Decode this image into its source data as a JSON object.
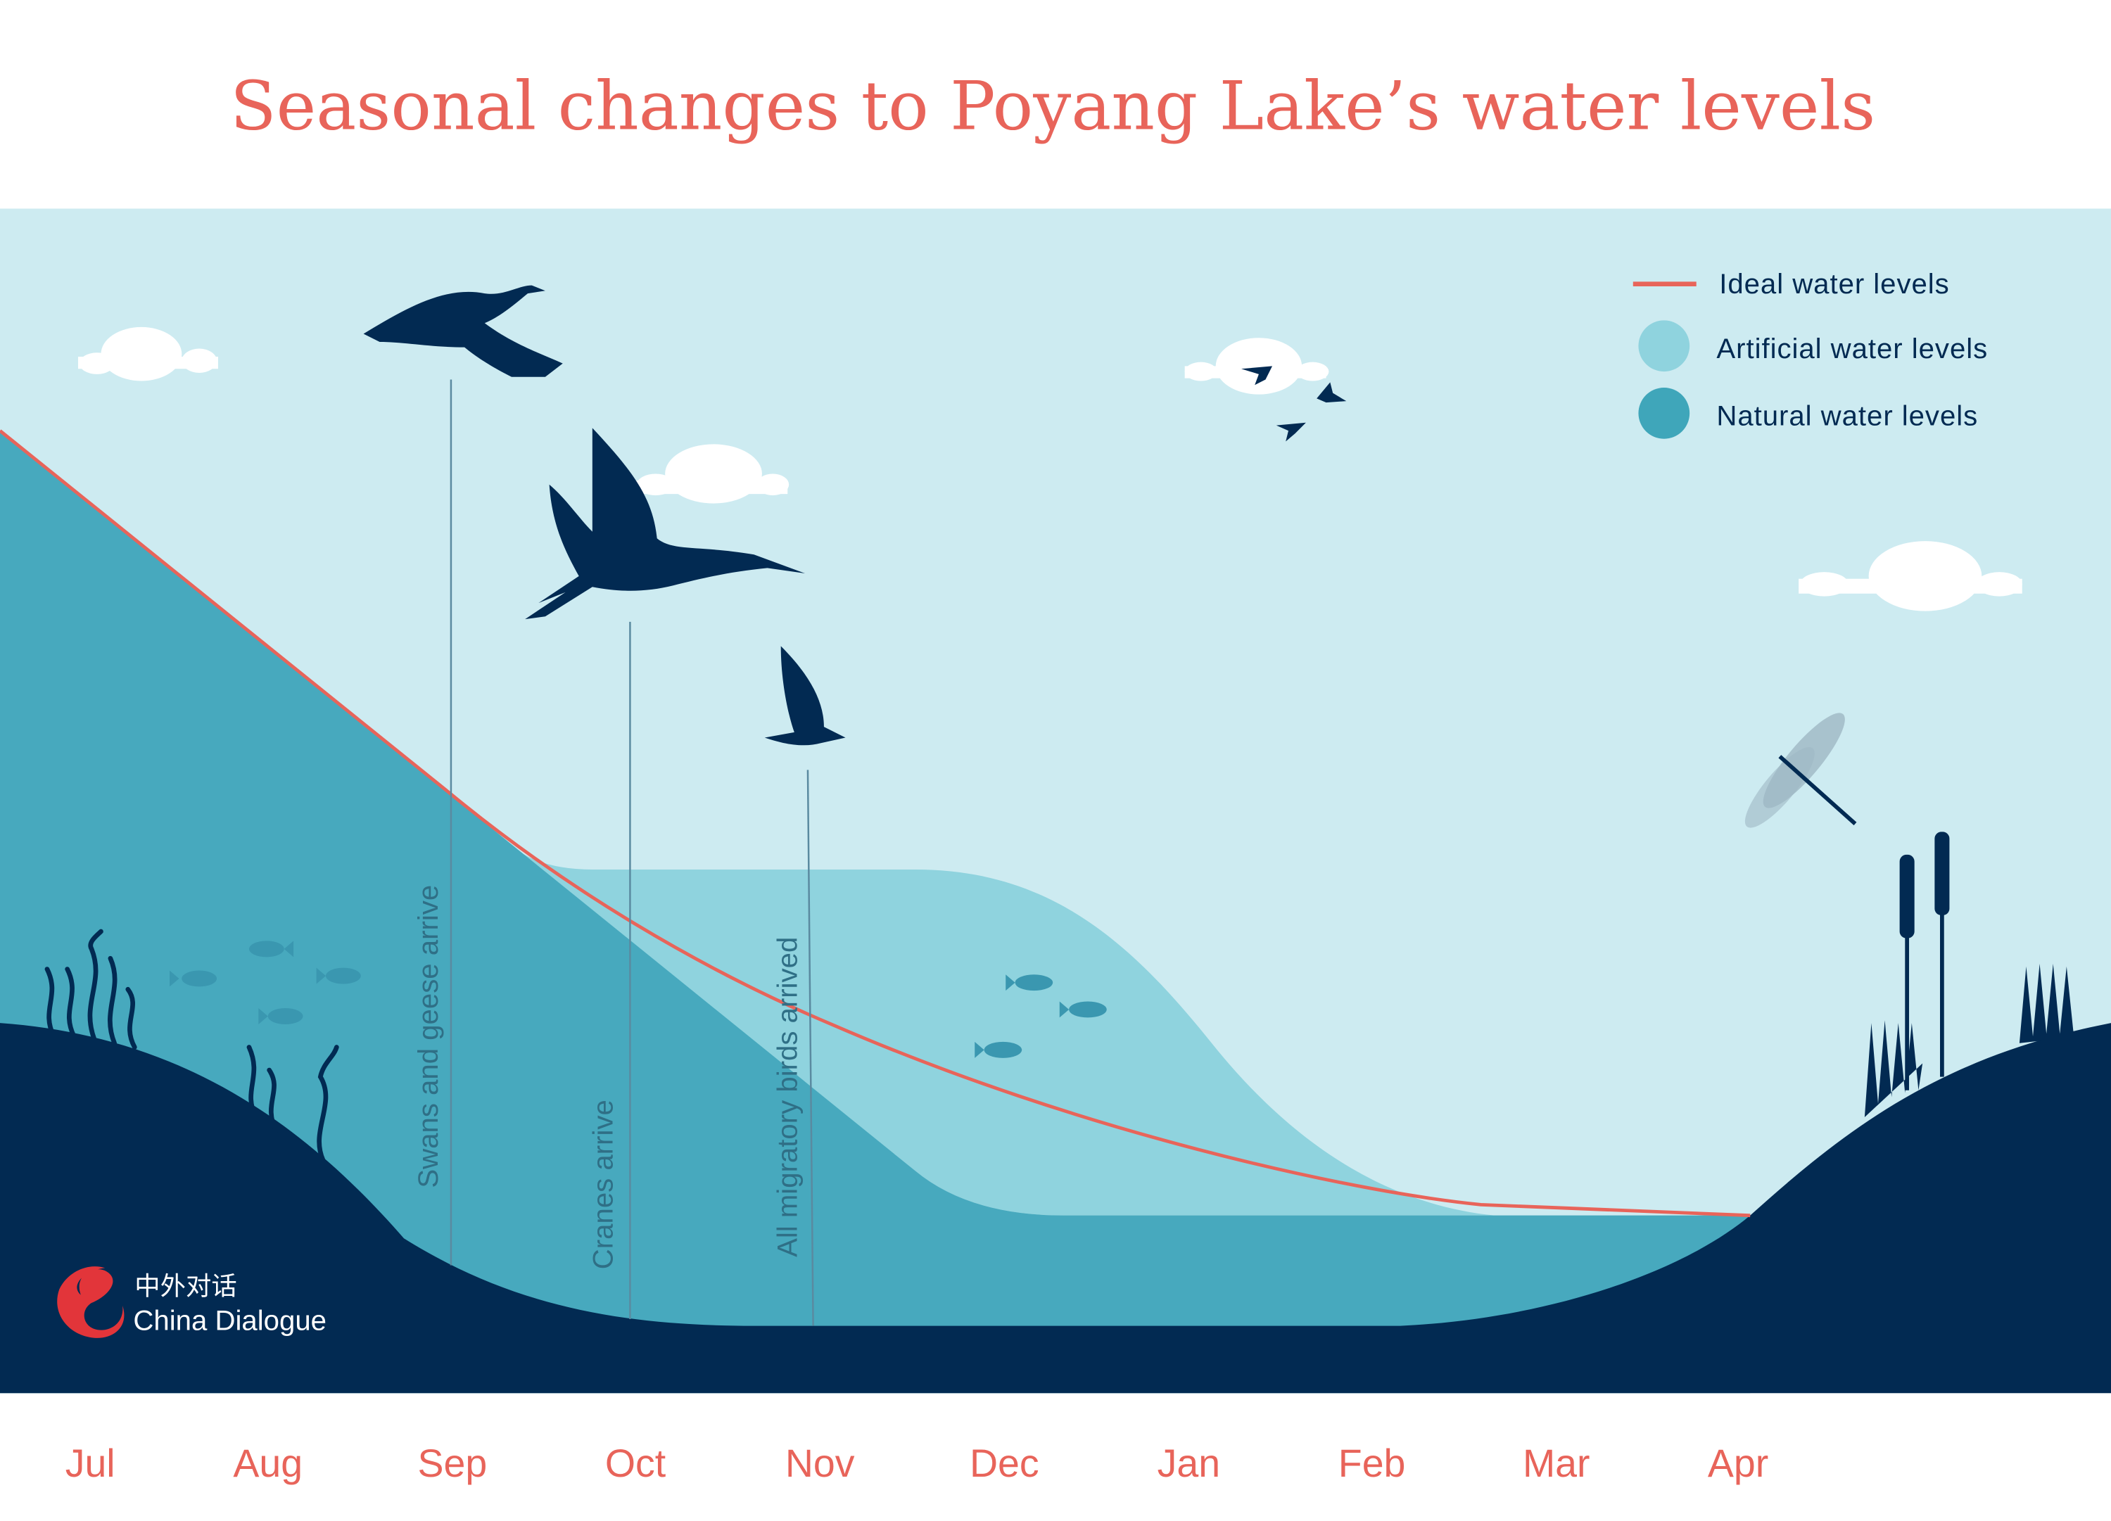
{
  "title": "Seasonal changes to Poyang Lake’s water levels",
  "colors": {
    "sky": "#cdebf1",
    "natural": "#47a9be",
    "artificial": "#8fd3de",
    "ground": "#022a52",
    "ideal_line": "#e8645a",
    "text_dark": "#022a52"
  },
  "legend": [
    {
      "label": "Ideal water levels",
      "symbol": "line",
      "color": "#e8645a"
    },
    {
      "label": "Artificial water levels",
      "symbol": "circle",
      "color": "#8fd3de"
    },
    {
      "label": "Natural water levels",
      "symbol": "circle",
      "color": "#3fa6ba"
    }
  ],
  "annotations": [
    {
      "label": "Swans and geese arrive",
      "month": "Sep"
    },
    {
      "label": "Cranes arrive",
      "month": "Oct"
    },
    {
      "label": "All migratory birds arrived",
      "month": "Nov"
    }
  ],
  "logo": {
    "chinese": "中外对话",
    "english": "China Dialogue"
  },
  "chart_data": {
    "type": "area",
    "title": "Seasonal changes to Poyang Lake’s water levels",
    "categories": [
      "Jul",
      "Aug",
      "Sep",
      "Oct",
      "Nov",
      "Dec",
      "Jan",
      "Feb",
      "Mar",
      "Apr"
    ],
    "series": [
      {
        "name": "Ideal water levels",
        "style": "line"
      },
      {
        "name": "Artificial water levels",
        "style": "area"
      },
      {
        "name": "Natural water levels",
        "style": "area"
      }
    ],
    "legend_position": "top-right",
    "grid": false,
    "yaxis_labels": false
  }
}
